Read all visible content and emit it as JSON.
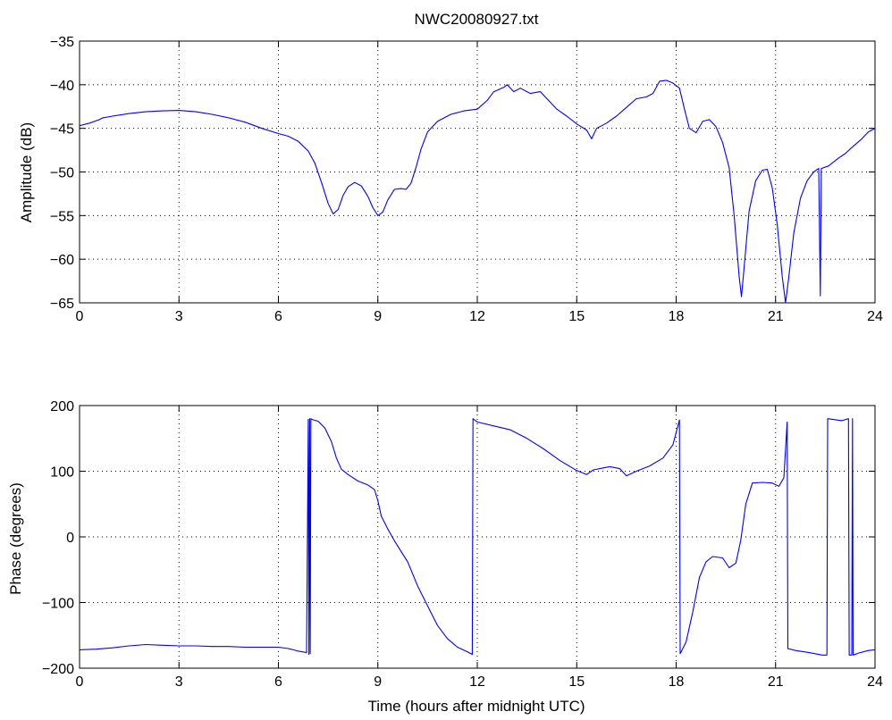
{
  "chart_data": [
    {
      "type": "line",
      "title": "NWC20080927.txt",
      "xlabel": "",
      "ylabel": "Amplitude (dB)",
      "xlim": [
        0,
        24
      ],
      "ylim": [
        -65,
        -35
      ],
      "xticks": [
        "0",
        "3",
        "6",
        "9",
        "12",
        "15",
        "18",
        "21",
        "24"
      ],
      "yticks": [
        "-35",
        "-40",
        "-45",
        "-50",
        "-55",
        "-60",
        "-65"
      ],
      "grid": true,
      "series": [
        {
          "color": "#0000ff",
          "points": [
            [
              0,
              -44.7
            ],
            [
              0.3,
              -44.4
            ],
            [
              0.6,
              -44.0
            ],
            [
              0.7,
              -43.8
            ],
            [
              1.0,
              -43.6
            ],
            [
              1.5,
              -43.3
            ],
            [
              2.0,
              -43.1
            ],
            [
              2.5,
              -43.0
            ],
            [
              3.0,
              -42.95
            ],
            [
              3.5,
              -43.1
            ],
            [
              4.0,
              -43.4
            ],
            [
              4.5,
              -43.8
            ],
            [
              5.0,
              -44.3
            ],
            [
              5.5,
              -45.0
            ],
            [
              6.0,
              -45.6
            ],
            [
              6.3,
              -45.9
            ],
            [
              6.6,
              -46.5
            ],
            [
              6.9,
              -47.6
            ],
            [
              7.1,
              -49.0
            ],
            [
              7.3,
              -51.2
            ],
            [
              7.5,
              -53.6
            ],
            [
              7.65,
              -54.8
            ],
            [
              7.8,
              -54.3
            ],
            [
              7.95,
              -52.7
            ],
            [
              8.1,
              -51.7
            ],
            [
              8.3,
              -51.2
            ],
            [
              8.5,
              -51.6
            ],
            [
              8.7,
              -52.8
            ],
            [
              8.85,
              -54.1
            ],
            [
              9.0,
              -55.0
            ],
            [
              9.15,
              -54.6
            ],
            [
              9.3,
              -53.2
            ],
            [
              9.5,
              -52.0
            ],
            [
              9.7,
              -51.9
            ],
            [
              9.85,
              -52.0
            ],
            [
              10.0,
              -51.3
            ],
            [
              10.15,
              -49.5
            ],
            [
              10.3,
              -47.4
            ],
            [
              10.5,
              -45.4
            ],
            [
              10.8,
              -44.2
            ],
            [
              11.2,
              -43.4
            ],
            [
              11.6,
              -43.0
            ],
            [
              12.0,
              -42.8
            ],
            [
              12.3,
              -41.8
            ],
            [
              12.5,
              -40.8
            ],
            [
              12.8,
              -40.3
            ],
            [
              12.9,
              -40.0
            ],
            [
              13.1,
              -40.8
            ],
            [
              13.3,
              -40.4
            ],
            [
              13.6,
              -41.0
            ],
            [
              13.9,
              -40.8
            ],
            [
              14.1,
              -41.6
            ],
            [
              14.4,
              -42.8
            ],
            [
              14.7,
              -43.6
            ],
            [
              15.0,
              -44.5
            ],
            [
              15.3,
              -45.2
            ],
            [
              15.45,
              -46.2
            ],
            [
              15.6,
              -45.0
            ],
            [
              15.9,
              -44.4
            ],
            [
              16.2,
              -43.6
            ],
            [
              16.5,
              -42.6
            ],
            [
              16.8,
              -41.6
            ],
            [
              17.1,
              -41.4
            ],
            [
              17.3,
              -41.0
            ],
            [
              17.5,
              -39.6
            ],
            [
              17.7,
              -39.5
            ],
            [
              17.9,
              -39.8
            ],
            [
              18.1,
              -40.4
            ],
            [
              18.25,
              -42.8
            ],
            [
              18.4,
              -45.0
            ],
            [
              18.6,
              -45.5
            ],
            [
              18.8,
              -44.2
            ],
            [
              19.0,
              -44.0
            ],
            [
              19.2,
              -44.8
            ],
            [
              19.4,
              -46.6
            ],
            [
              19.6,
              -49.5
            ],
            [
              19.75,
              -55.0
            ],
            [
              19.9,
              -62.0
            ],
            [
              19.97,
              -64.3
            ],
            [
              20.05,
              -61.0
            ],
            [
              20.2,
              -54.5
            ],
            [
              20.4,
              -51.0
            ],
            [
              20.6,
              -49.8
            ],
            [
              20.75,
              -49.7
            ],
            [
              20.9,
              -51.8
            ],
            [
              21.05,
              -56.0
            ],
            [
              21.2,
              -62.0
            ],
            [
              21.3,
              -65.0
            ],
            [
              21.4,
              -62.0
            ],
            [
              21.55,
              -57.0
            ],
            [
              21.75,
              -53.0
            ],
            [
              21.95,
              -51.0
            ],
            [
              22.15,
              -50.0
            ],
            [
              22.3,
              -49.6
            ],
            [
              22.35,
              -64.2
            ],
            [
              22.38,
              -49.6
            ],
            [
              22.6,
              -49.3
            ],
            [
              22.9,
              -48.4
            ],
            [
              23.1,
              -47.9
            ],
            [
              23.3,
              -47.2
            ],
            [
              23.6,
              -46.2
            ],
            [
              23.8,
              -45.4
            ],
            [
              24.0,
              -45.0
            ]
          ]
        }
      ]
    },
    {
      "type": "line",
      "title": "",
      "xlabel": "Time (hours after midnight UTC)",
      "ylabel": "Phase (degrees)",
      "xlim": [
        0,
        24
      ],
      "ylim": [
        -200,
        200
      ],
      "xticks": [
        "0",
        "3",
        "6",
        "9",
        "12",
        "15",
        "18",
        "21",
        "24"
      ],
      "yticks": [
        "200",
        "100",
        "0",
        "-100",
        "-200"
      ],
      "grid": true,
      "series": [
        {
          "color": "#0000ff",
          "points": [
            [
              0,
              -172
            ],
            [
              0.5,
              -171
            ],
            [
              1.0,
              -169
            ],
            [
              1.5,
              -166
            ],
            [
              2.0,
              -164
            ],
            [
              2.5,
              -165
            ],
            [
              3.0,
              -166
            ],
            [
              3.5,
              -166
            ],
            [
              4.0,
              -167
            ],
            [
              4.5,
              -167
            ],
            [
              5.0,
              -168
            ],
            [
              5.5,
              -168
            ],
            [
              6.0,
              -168
            ],
            [
              6.3,
              -170
            ],
            [
              6.6,
              -174
            ],
            [
              6.85,
              -176
            ],
            [
              6.9,
              179
            ],
            [
              6.92,
              -179
            ],
            [
              6.94,
              180
            ],
            [
              6.96,
              -178
            ],
            [
              6.98,
              180
            ],
            [
              7.0,
              179
            ],
            [
              7.2,
              176
            ],
            [
              7.4,
              166
            ],
            [
              7.6,
              145
            ],
            [
              7.75,
              120
            ],
            [
              7.9,
              103
            ],
            [
              8.1,
              95
            ],
            [
              8.4,
              85
            ],
            [
              8.7,
              79
            ],
            [
              8.9,
              72
            ],
            [
              9.0,
              55
            ],
            [
              9.1,
              32
            ],
            [
              9.3,
              12
            ],
            [
              9.5,
              -6
            ],
            [
              9.7,
              -22
            ],
            [
              9.9,
              -38
            ],
            [
              10.0,
              -50
            ],
            [
              10.2,
              -75
            ],
            [
              10.5,
              -105
            ],
            [
              10.8,
              -135
            ],
            [
              11.1,
              -155
            ],
            [
              11.4,
              -168
            ],
            [
              11.7,
              -175
            ],
            [
              11.85,
              -179
            ],
            [
              11.87,
              180
            ],
            [
              12.0,
              175
            ],
            [
              12.5,
              169
            ],
            [
              13.0,
              163
            ],
            [
              13.5,
              150
            ],
            [
              14.0,
              134
            ],
            [
              14.5,
              116
            ],
            [
              15.0,
              101
            ],
            [
              15.3,
              95
            ],
            [
              15.5,
              102
            ],
            [
              15.8,
              105
            ],
            [
              16.0,
              107
            ],
            [
              16.3,
              104
            ],
            [
              16.5,
              93
            ],
            [
              16.8,
              100
            ],
            [
              17.2,
              108
            ],
            [
              17.6,
              120
            ],
            [
              17.9,
              140
            ],
            [
              18.1,
              178
            ],
            [
              18.12,
              -178
            ],
            [
              18.3,
              -160
            ],
            [
              18.5,
              -115
            ],
            [
              18.7,
              -62
            ],
            [
              18.9,
              -38
            ],
            [
              19.1,
              -30
            ],
            [
              19.4,
              -32
            ],
            [
              19.6,
              -47
            ],
            [
              19.8,
              -40
            ],
            [
              19.95,
              -5
            ],
            [
              20.1,
              50
            ],
            [
              20.3,
              82
            ],
            [
              20.6,
              83
            ],
            [
              20.9,
              82
            ],
            [
              21.1,
              77
            ],
            [
              21.25,
              90
            ],
            [
              21.35,
              175
            ],
            [
              21.37,
              -170
            ],
            [
              21.6,
              -173
            ],
            [
              22.0,
              -176
            ],
            [
              22.4,
              -180
            ],
            [
              22.55,
              -180
            ],
            [
              22.57,
              180
            ],
            [
              23.0,
              177
            ],
            [
              23.2,
              180
            ],
            [
              23.22,
              -180
            ],
            [
              23.3,
              -180
            ],
            [
              23.32,
              180
            ],
            [
              23.34,
              -180
            ],
            [
              23.5,
              -177
            ],
            [
              23.8,
              -173
            ],
            [
              24.0,
              -172
            ]
          ]
        }
      ]
    }
  ]
}
